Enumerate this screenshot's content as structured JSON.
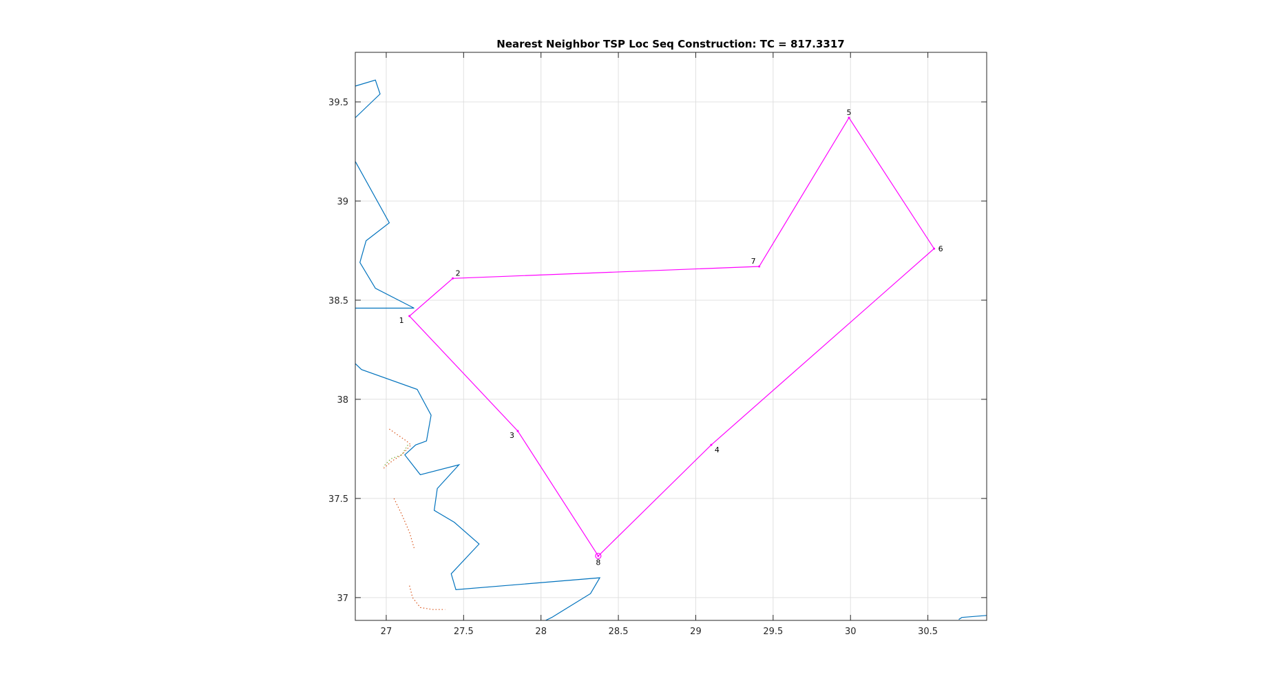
{
  "chart_data": {
    "type": "line",
    "title": "Nearest Neighbor TSP Loc Seq Construction: TC = 817.3317",
    "xlabel": "",
    "ylabel": "",
    "xlim": [
      26.8,
      30.88
    ],
    "ylim": [
      36.885,
      39.75
    ],
    "x_ticks": [
      27,
      27.5,
      28,
      28.5,
      29,
      29.5,
      30,
      30.5
    ],
    "x_tick_labels": [
      "27",
      "27.5",
      "28",
      "28.5",
      "29",
      "29.5",
      "30",
      "30.5"
    ],
    "y_ticks": [
      37,
      37.5,
      38,
      38.5,
      39,
      39.5
    ],
    "y_tick_labels": [
      "37",
      "37.5",
      "38",
      "38.5",
      "39",
      "39.5"
    ],
    "grid": true,
    "colors": {
      "route": "#ff00ff",
      "coast": "#0072bd",
      "border": "#d95319",
      "border_alt": "#77ac30",
      "grid": "#e0e0e0",
      "axes": "#262626"
    },
    "route": {
      "locations": [
        {
          "label": "1",
          "x": 27.15,
          "y": 38.42
        },
        {
          "label": "2",
          "x": 27.43,
          "y": 38.61
        },
        {
          "label": "3",
          "x": 27.85,
          "y": 37.84
        },
        {
          "label": "4",
          "x": 29.1,
          "y": 37.77
        },
        {
          "label": "5",
          "x": 29.99,
          "y": 39.42
        },
        {
          "label": "6",
          "x": 30.54,
          "y": 38.76
        },
        {
          "label": "7",
          "x": 29.41,
          "y": 38.67
        },
        {
          "label": "8",
          "x": 28.37,
          "y": 37.21
        }
      ],
      "sequence": [
        "8",
        "3",
        "1",
        "2",
        "7",
        "5",
        "6",
        "4",
        "8"
      ],
      "start_label": "8"
    },
    "background_lines": [
      {
        "style": "coast",
        "points": [
          [
            26.8,
            39.58
          ],
          [
            26.93,
            39.61
          ],
          [
            26.96,
            39.54
          ],
          [
            26.8,
            39.42
          ]
        ]
      },
      {
        "style": "coast",
        "points": [
          [
            26.8,
            39.2
          ],
          [
            27.02,
            38.89
          ],
          [
            26.87,
            38.8
          ],
          [
            26.83,
            38.69
          ],
          [
            26.93,
            38.56
          ],
          [
            27.18,
            38.46
          ],
          [
            26.8,
            38.46
          ]
        ]
      },
      {
        "style": "coast",
        "points": [
          [
            26.8,
            38.18
          ],
          [
            26.84,
            38.15
          ],
          [
            27.2,
            38.05
          ],
          [
            27.29,
            37.92
          ],
          [
            27.26,
            37.79
          ],
          [
            27.19,
            37.77
          ],
          [
            27.12,
            37.72
          ],
          [
            27.22,
            37.62
          ],
          [
            27.47,
            37.67
          ],
          [
            27.33,
            37.55
          ],
          [
            27.31,
            37.44
          ],
          [
            27.44,
            37.38
          ],
          [
            27.6,
            37.27
          ],
          [
            27.42,
            37.12
          ],
          [
            27.45,
            37.04
          ],
          [
            28.38,
            37.1
          ],
          [
            28.32,
            37.02
          ],
          [
            28.07,
            36.9
          ],
          [
            28.03,
            36.885
          ]
        ]
      },
      {
        "style": "coast",
        "points": [
          [
            30.7,
            36.89
          ],
          [
            30.72,
            36.9
          ],
          [
            30.88,
            36.91
          ]
        ]
      },
      {
        "style": "border",
        "points": [
          [
            27.02,
            37.85
          ],
          [
            27.13,
            37.79
          ],
          [
            27.16,
            37.77
          ],
          [
            27.1,
            37.72
          ],
          [
            27.04,
            37.69
          ],
          [
            26.98,
            37.65
          ]
        ]
      },
      {
        "style": "border_alt",
        "points": [
          [
            27.14,
            37.77
          ],
          [
            27.1,
            37.72
          ],
          [
            27.03,
            37.7
          ],
          [
            26.98,
            37.66
          ]
        ]
      },
      {
        "style": "border",
        "points": [
          [
            27.05,
            37.5
          ],
          [
            27.1,
            37.42
          ],
          [
            27.15,
            37.33
          ],
          [
            27.18,
            37.25
          ]
        ]
      },
      {
        "style": "border",
        "points": [
          [
            27.15,
            37.06
          ],
          [
            27.17,
            37.0
          ],
          [
            27.22,
            36.95
          ],
          [
            27.3,
            36.94
          ],
          [
            27.38,
            36.94
          ]
        ]
      }
    ]
  }
}
